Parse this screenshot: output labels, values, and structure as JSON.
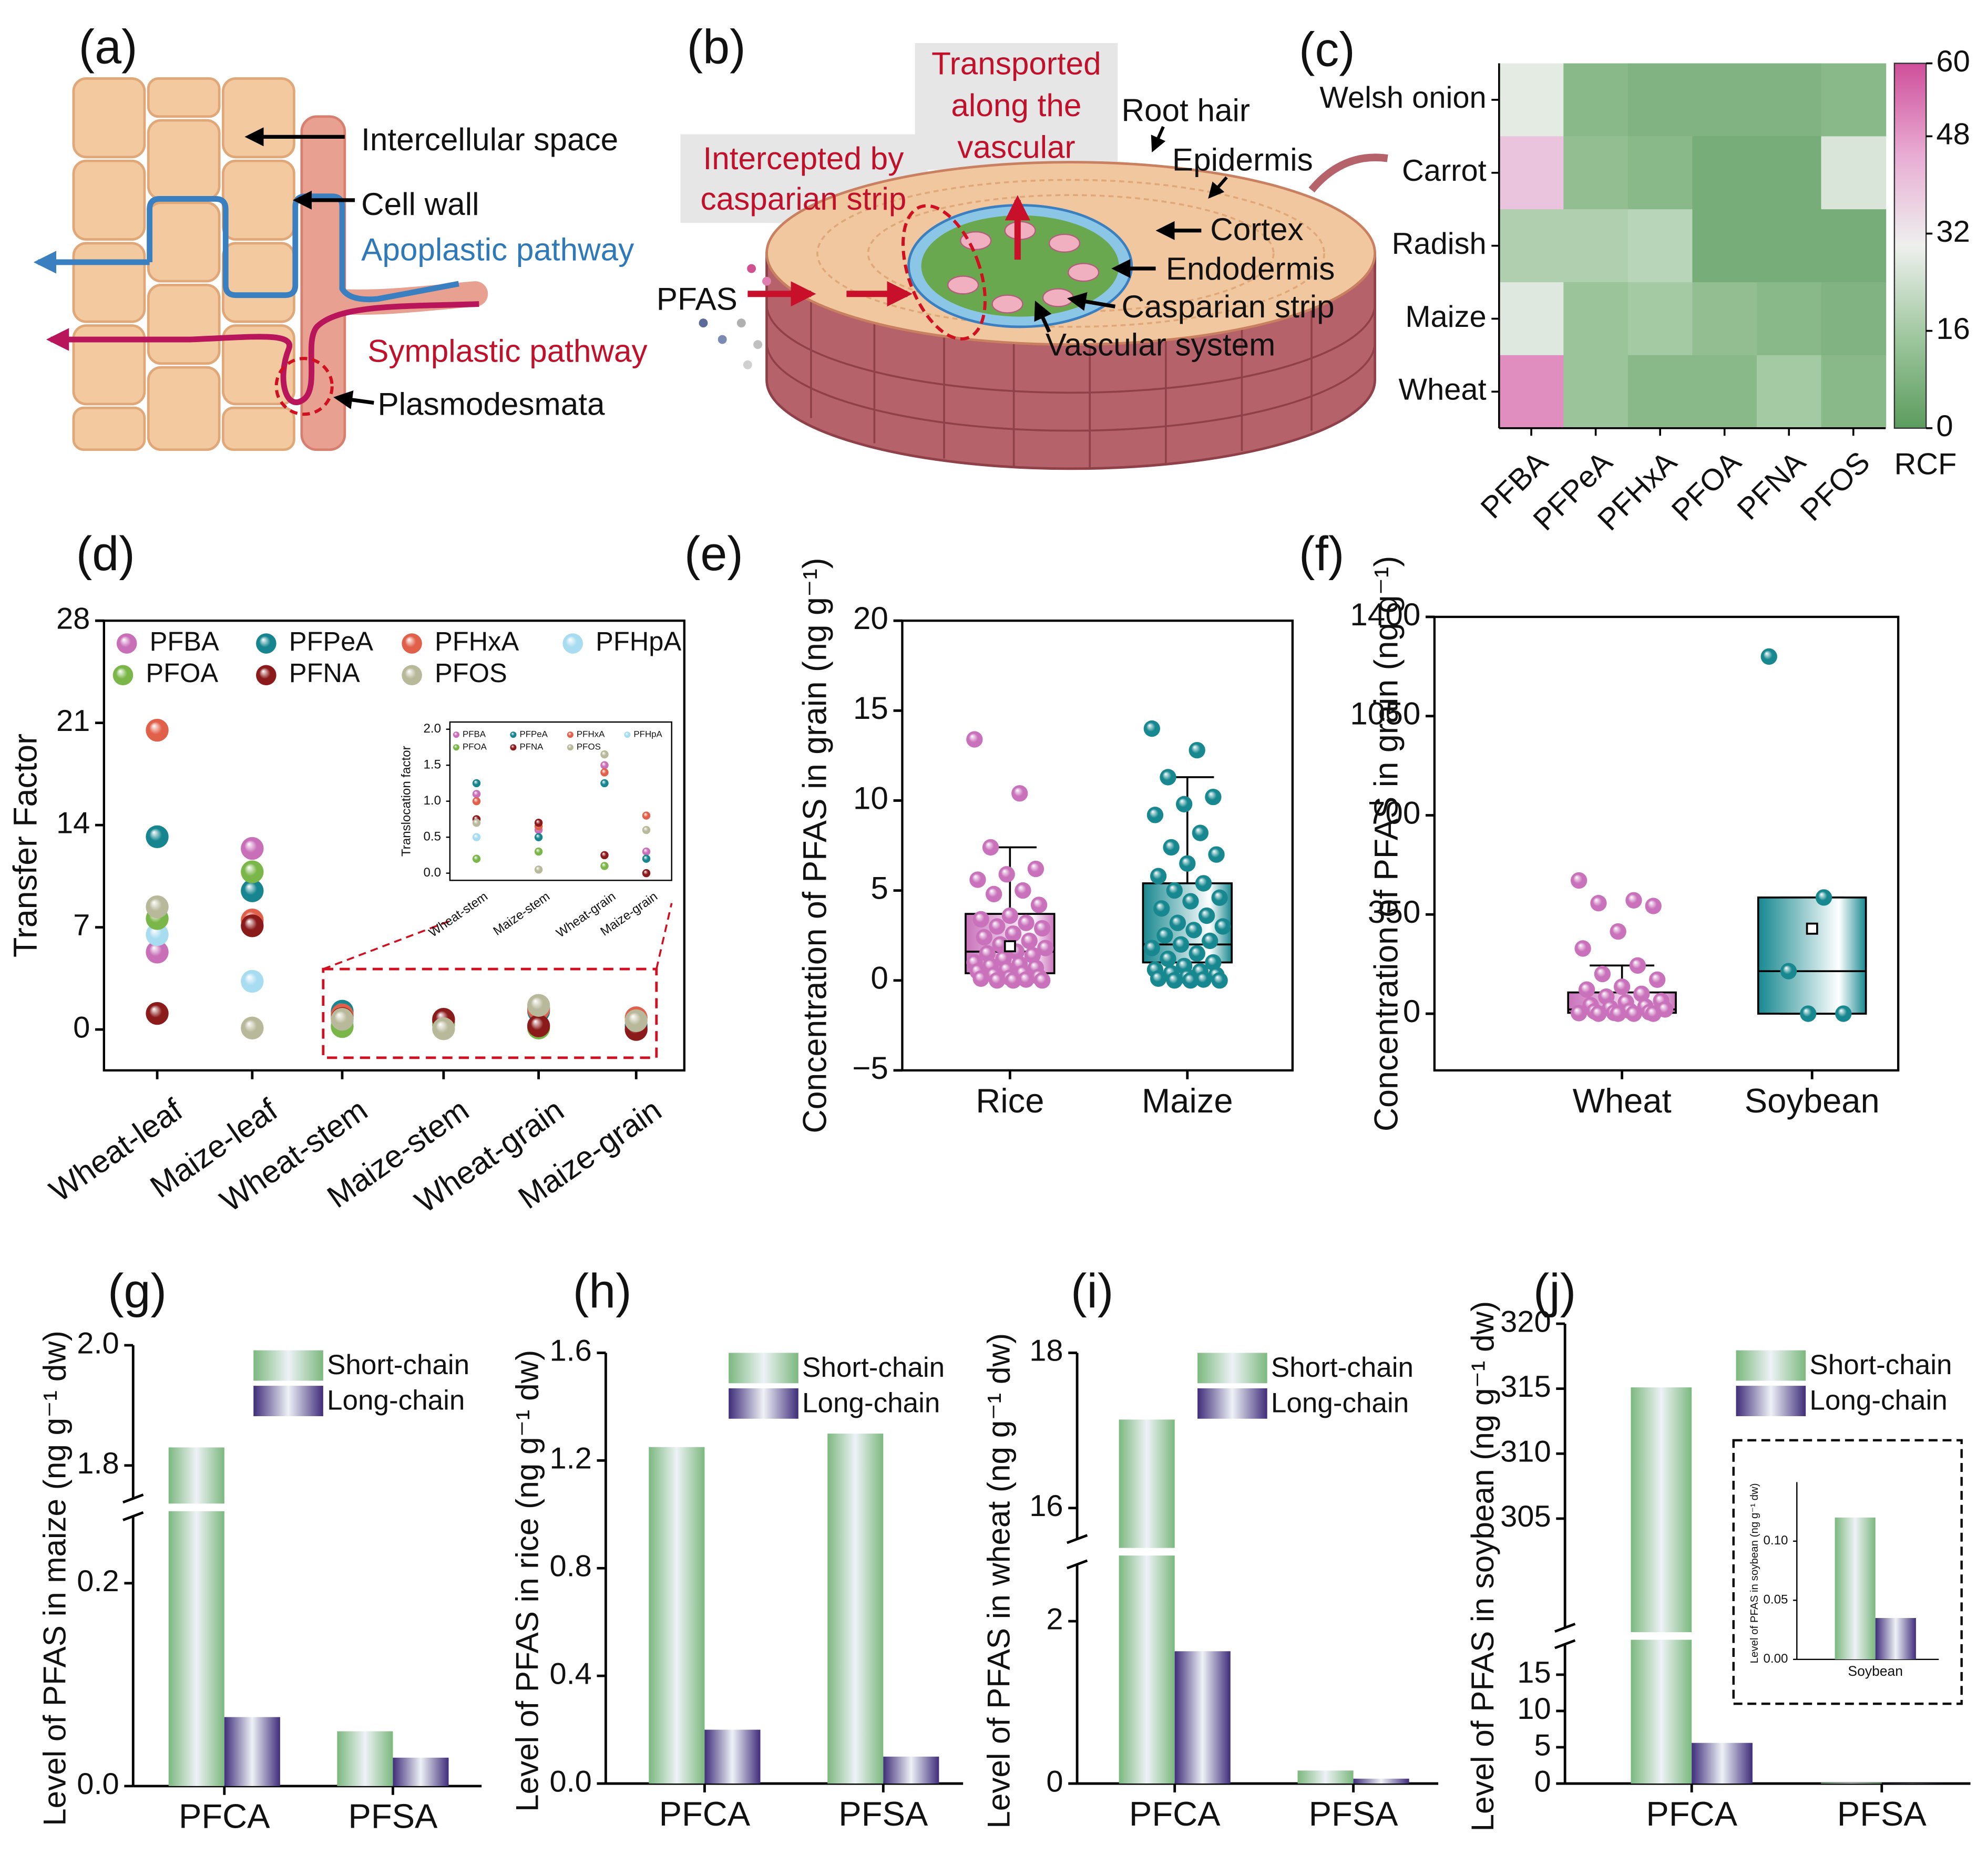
{
  "panels": {
    "a": {
      "label": "(a)",
      "intercellular_space": "Intercellular space",
      "cell_wall": "Cell wall",
      "apoplastic": "Apoplastic pathway",
      "symplastic": "Symplastic pathway",
      "plasmodesmata": "Plasmodesmata"
    },
    "b": {
      "label": "(b)",
      "transported": [
        "Transported",
        "along the",
        "vascular"
      ],
      "intercepted": [
        "Intercepted by",
        "casparian strip"
      ],
      "root_hair": "Root hair",
      "epidermis": "Epidermis",
      "cortex": "Cortex",
      "endodermis": "Endodermis",
      "casparian_strip": "Casparian strip",
      "vascular_system": "Vascular system",
      "pfas": "PFAS"
    }
  },
  "chart_data": [
    {
      "type": "heatmap",
      "label": "(c)",
      "rows": [
        "Welsh onion",
        "Carrot",
        "Radish",
        "Maize",
        "Wheat"
      ],
      "columns": [
        "PFBA",
        "PFPeA",
        "PFHxA",
        "PFOA",
        "PFNA",
        "PFOS"
      ],
      "values": [
        [
          28,
          10,
          8,
          8,
          8,
          10
        ],
        [
          40,
          12,
          10,
          6,
          6,
          26
        ],
        [
          18,
          18,
          20,
          6,
          6,
          6
        ],
        [
          27,
          14,
          16,
          12,
          10,
          8
        ],
        [
          50,
          14,
          10,
          10,
          16,
          10
        ]
      ],
      "clim": [
        0,
        60
      ],
      "cticks": [
        0,
        16,
        32,
        48,
        60
      ],
      "colorbar_label": "RCF",
      "colormap": [
        "#5c9c5e",
        "#9fc79f",
        "#eef0ee",
        "#e8acd3",
        "#cf4f9a"
      ]
    },
    {
      "type": "scatter",
      "label": "(d)",
      "ylabel": "Transfer Factor",
      "categories": [
        "Wheat-leaf",
        "Maize-leaf",
        "Wheat-stem",
        "Maize-stem",
        "Wheat-grain",
        "Maize-grain"
      ],
      "ylim": [
        -2.8,
        28
      ],
      "yticks": [
        0,
        7,
        14,
        21,
        28
      ],
      "series": [
        {
          "name": "PFBA",
          "color": "#c86fb8",
          "values": [
            5.3,
            12.4,
            1.1,
            0.6,
            1.5,
            0.3
          ]
        },
        {
          "name": "PFPeA",
          "color": "#17858f",
          "values": [
            13.2,
            9.5,
            1.25,
            0.5,
            1.25,
            0.2
          ]
        },
        {
          "name": "PFHxA",
          "color": "#e0604a",
          "values": [
            20.5,
            7.5,
            1.0,
            0.65,
            1.4,
            0.8
          ]
        },
        {
          "name": "PFHpA",
          "color": "#a8dcf0",
          "values": [
            6.5,
            3.3,
            0.5,
            null,
            null,
            null
          ]
        },
        {
          "name": "PFOA",
          "color": "#7ab648",
          "values": [
            7.6,
            10.8,
            0.2,
            0.3,
            0.1,
            null
          ]
        },
        {
          "name": "PFNA",
          "color": "#8b1a1a",
          "values": [
            1.1,
            7.1,
            0.75,
            0.7,
            0.25,
            0.0
          ]
        },
        {
          "name": "PFOS",
          "color": "#b8b89a",
          "values": [
            8.4,
            0.1,
            0.7,
            0.05,
            1.65,
            0.6
          ]
        }
      ],
      "inset": {
        "ylabel": "Translocation factor",
        "categories": [
          "Wheat-stem",
          "Maize-stem",
          "Wheat-grain",
          "Maize-grain"
        ],
        "ylim": [
          -0.1,
          2.1
        ],
        "yticks": [
          {
            "value": 0,
            "label": "0.0"
          },
          0.5,
          {
            "value": 1,
            "label": "1.0"
          },
          1.5,
          {
            "value": 2,
            "label": "2.0"
          }
        ],
        "legend": [
          "PFBA",
          "PFPeA",
          "PFHxA",
          "PFHpA",
          "PFOA",
          "PFNA",
          "PFOS"
        ]
      }
    },
    {
      "type": "box",
      "label": "(e)",
      "ylabel": "Concentration of PFAS in grain (ng g⁻¹)",
      "categories": [
        "Rice",
        "Maize"
      ],
      "colors": [
        "#c972bb",
        "#17888f"
      ],
      "ylim": [
        -5,
        20
      ],
      "yticks": [
        {
          "value": -5,
          "label": "−5"
        },
        0,
        5,
        10,
        15,
        20
      ],
      "boxes": [
        {
          "min": 0,
          "q1": 0.4,
          "median": 1.6,
          "q3": 3.7,
          "max": 7.4,
          "mean": 1.9
        },
        {
          "min": 0,
          "q1": 1.0,
          "median": 2.0,
          "q3": 5.4,
          "max": 11.3
        }
      ],
      "points": [
        [
          13.4,
          10.4,
          7.4,
          6.2,
          5.9,
          5.6,
          5.0,
          4.8,
          4.2,
          3.6,
          3.4,
          3.2,
          3.0,
          2.9,
          2.6,
          2.4,
          2.2,
          2.0,
          1.8,
          1.6,
          1.5,
          1.4,
          1.2,
          1.0,
          0.9,
          0.8,
          0.7,
          0.6,
          0.5,
          0.4,
          0.3,
          0.2,
          0.15,
          0.1,
          0.05,
          0,
          0,
          0
        ],
        [
          14.0,
          12.8,
          11.3,
          10.2,
          9.8,
          9.2,
          8.2,
          7.4,
          7.0,
          6.5,
          5.8,
          5.4,
          5.0,
          4.6,
          4.4,
          4.0,
          3.6,
          3.2,
          3.0,
          2.8,
          2.5,
          2.2,
          2.0,
          1.8,
          1.5,
          1.2,
          1.0,
          0.8,
          0.6,
          0.5,
          0.4,
          0.3,
          0.2,
          0.1,
          0.05,
          0,
          0,
          0
        ]
      ]
    },
    {
      "type": "box",
      "label": "(f)",
      "ylabel": "Concentration of PFAS in grain (ng g⁻¹)",
      "categories": [
        "Wheat",
        "Soybean"
      ],
      "colors": [
        "#c972bb",
        "#17888f"
      ],
      "ylim": [
        -200,
        1400
      ],
      "yticks": [
        0,
        350,
        700,
        1050,
        1400
      ],
      "boxes": [
        {
          "min": 0,
          "q1": 3,
          "median": 15,
          "q3": 75,
          "max": 170
        },
        {
          "min": 0,
          "q1": 0,
          "median": 150,
          "q3": 410,
          "max": 410,
          "mean": 300
        }
      ],
      "points": [
        [
          470,
          400,
          390,
          380,
          290,
          230,
          170,
          140,
          120,
          95,
          85,
          70,
          60,
          45,
          40,
          30,
          25,
          20,
          15,
          10,
          8,
          5,
          3,
          2,
          0,
          0,
          0,
          0
        ],
        [
          1260,
          410,
          150,
          0,
          0
        ]
      ]
    },
    {
      "type": "bar",
      "label": "(g)",
      "ylabel": "Level of PFAS in maize (ng g⁻¹ dw)",
      "categories": [
        "PFCA",
        "PFSA"
      ],
      "ylim": [
        0,
        2.0
      ],
      "ybreak": [
        0.266,
        1.745
      ],
      "yticks": [
        {
          "value": 0,
          "label": "0.0"
        },
        0.2,
        1.8,
        {
          "value": 2,
          "label": "2.0"
        }
      ],
      "series": [
        {
          "name": "Short-chain",
          "color": "#7cb87f",
          "values": [
            1.83,
            0.054
          ]
        },
        {
          "name": "Long-chain",
          "color": "#3f2d7a",
          "values": [
            0.068,
            0.028
          ]
        }
      ]
    },
    {
      "type": "bar",
      "label": "(h)",
      "ylabel": "Level of PFAS in rice (ng g⁻¹ dw)",
      "categories": [
        "PFCA",
        "PFSA"
      ],
      "ylim": [
        0,
        1.6
      ],
      "yticks": [
        {
          "value": 0,
          "label": "0.0"
        },
        0.4,
        0.8,
        1.2,
        1.6
      ],
      "series": [
        {
          "name": "Short-chain",
          "color": "#7cb87f",
          "values": [
            1.25,
            1.3
          ]
        },
        {
          "name": "Long-chain",
          "color": "#3f2d7a",
          "values": [
            0.2,
            0.1
          ]
        }
      ]
    },
    {
      "type": "bar",
      "label": "(i)",
      "ylabel": "Level of PFAS in wheat (ng g⁻¹ dw)",
      "categories": [
        "PFCA",
        "PFSA"
      ],
      "ylim": [
        0,
        18
      ],
      "ybreak": [
        2.7,
        15.6
      ],
      "yticks": [
        0,
        2,
        16,
        18
      ],
      "series": [
        {
          "name": "Short-chain",
          "color": "#7cb87f",
          "values": [
            17.14,
            0.16
          ]
        },
        {
          "name": "Long-chain",
          "color": "#3f2d7a",
          "values": [
            1.63,
            0.06
          ]
        }
      ]
    },
    {
      "type": "bar",
      "label": "(j)",
      "ylabel": "Level of PFAS in soybean (ng g⁻¹ dw)",
      "categories": [
        "PFCA",
        "PFSA"
      ],
      "ylim": [
        0,
        320
      ],
      "ybreak": [
        19.2,
        296.6
      ],
      "yticks": [
        0,
        5,
        10,
        15,
        305,
        310,
        315,
        320
      ],
      "series": [
        {
          "name": "Short-chain",
          "color": "#7cb87f",
          "values": [
            315.1,
            0.12
          ]
        },
        {
          "name": "Long-chain",
          "color": "#3f2d7a",
          "values": [
            5.6,
            0.035
          ]
        }
      ],
      "inset": {
        "ylabel": "Level of PFAS in soybean (ng g⁻¹ dw)",
        "categories": [
          "Soybean"
        ],
        "ylim": [
          0,
          0.15
        ],
        "yticks": [
          {
            "value": 0,
            "label": "0.00"
          },
          0.05,
          {
            "value": 0.1,
            "label": "0.10"
          }
        ]
      }
    }
  ]
}
